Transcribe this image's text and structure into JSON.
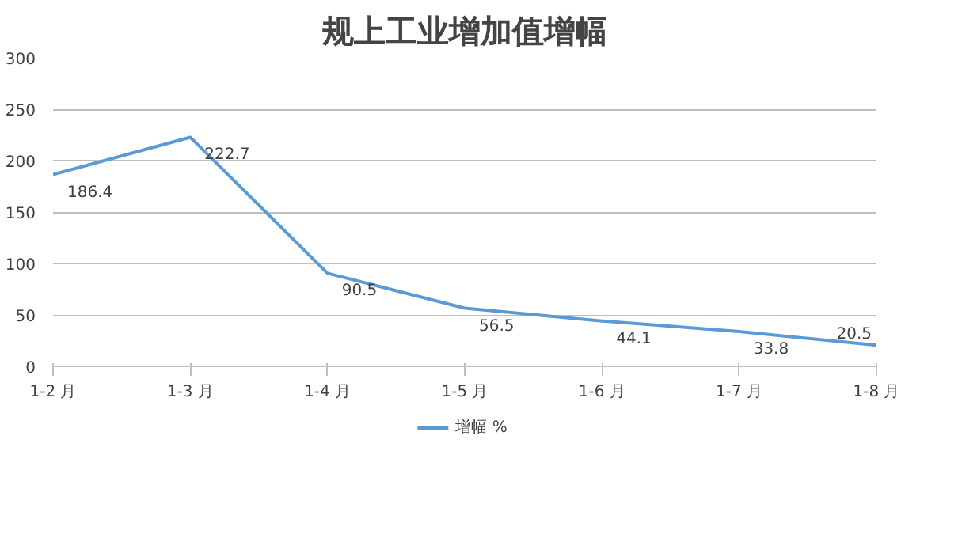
{
  "chart_data": {
    "type": "line",
    "title": "规上工业增加值增幅",
    "categories": [
      "1-2 月",
      "1-3 月",
      "1-4 月",
      "1-5 月",
      "1-6 月",
      "1-7 月",
      "1-8 月"
    ],
    "series": [
      {
        "name": "增幅 %",
        "color": "#5b9bd5",
        "values": [
          186.4,
          222.7,
          90.5,
          56.5,
          44.1,
          33.8,
          20.5
        ]
      }
    ],
    "ylim": [
      0,
      300
    ],
    "yticks": [
      0,
      50,
      100,
      150,
      200,
      250,
      300
    ],
    "grid": "y",
    "legend": "bottom",
    "data_labels": true,
    "marker": "none",
    "line_style": "solid"
  }
}
